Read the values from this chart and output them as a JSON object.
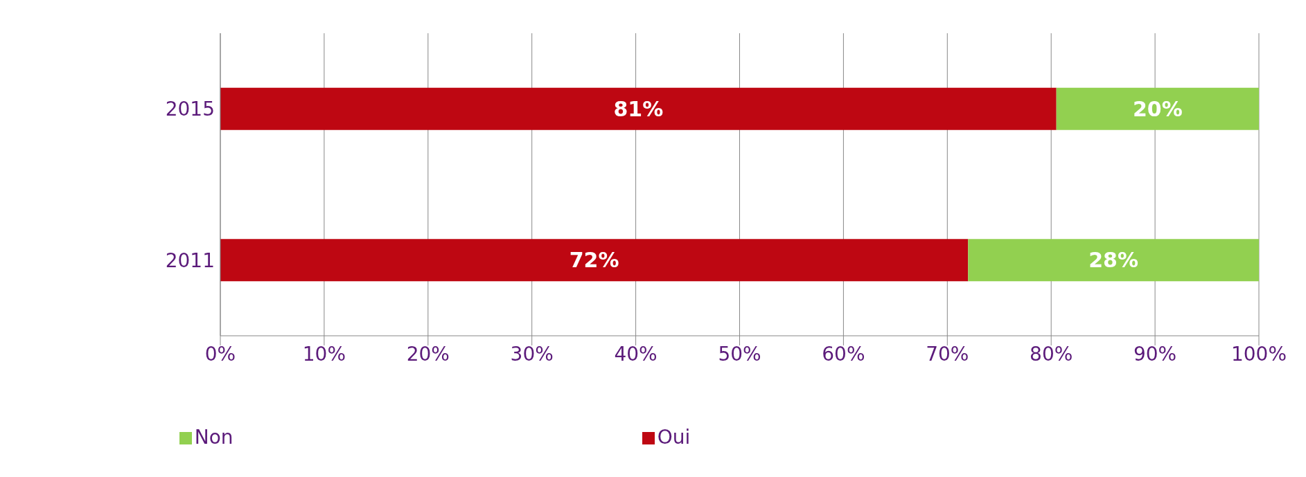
{
  "chart_data": {
    "type": "bar",
    "orientation": "horizontal",
    "stacked": true,
    "categories": [
      "2015",
      "2011"
    ],
    "series": [
      {
        "name": "Oui",
        "color": "#be0712",
        "values": [
          80.5,
          72
        ],
        "value_labels": [
          "81%",
          "72%"
        ]
      },
      {
        "name": "Non",
        "color": "#92d050",
        "values": [
          19.5,
          28
        ],
        "value_labels": [
          "20%",
          "28%"
        ]
      }
    ],
    "xlim": [
      0,
      100
    ],
    "xticks": [
      {
        "value": 0,
        "label": "0%"
      },
      {
        "value": 10,
        "label": "10%"
      },
      {
        "value": 20,
        "label": "20%"
      },
      {
        "value": 30,
        "label": "30%"
      },
      {
        "value": 40,
        "label": "40%"
      },
      {
        "value": 50,
        "label": "50%"
      },
      {
        "value": 60,
        "label": "60%"
      },
      {
        "value": 70,
        "label": "70%"
      },
      {
        "value": 80,
        "label": "80%"
      },
      {
        "value": 90,
        "label": "90%"
      },
      {
        "value": 100,
        "label": "100%"
      }
    ],
    "grid": "x",
    "legend": "bottom"
  }
}
